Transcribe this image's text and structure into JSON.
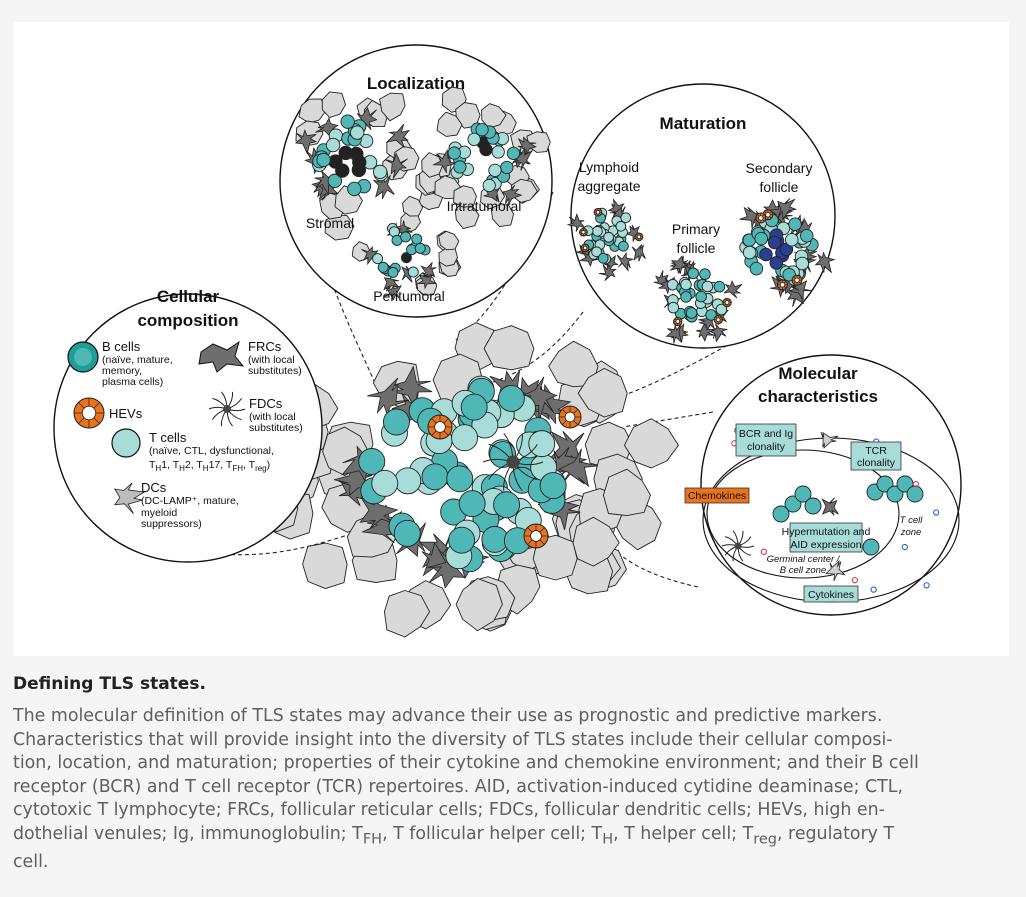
{
  "figure": {
    "localization": {
      "title": "Localization",
      "labels": {
        "stromal": "Stromal",
        "intratumoral": "Intratumoral",
        "peritumoral": "Peritumoral"
      }
    },
    "maturation": {
      "title": "Maturation",
      "labels": {
        "lymphoid_1": "Lymphoid",
        "lymphoid_2": "aggregate",
        "primary_1": "Primary",
        "primary_2": "follicle",
        "secondary_1": "Secondary",
        "secondary_2": "follicle"
      }
    },
    "cellular": {
      "title_1": "Cellular",
      "title_2": "composition",
      "bcells": {
        "name": "B cells",
        "d1": "(naïve, mature,",
        "d2": "memory,",
        "d3": "plasma cells)"
      },
      "frcs": {
        "name": "FRCs",
        "d1": "(with local",
        "d2": "substitutes)"
      },
      "hevs": {
        "name": "HEVs"
      },
      "fdcs": {
        "name": "FDCs",
        "d1": "(with local",
        "d2": "substitutes)"
      },
      "tcells": {
        "name": "T cells",
        "d1": "(naïve, CTL, dysfunctional,",
        "t": "T",
        "h": "H",
        "h2": "H",
        "h17": "H",
        "fh": "FH",
        "reg": "reg",
        "s1": "1, T",
        "s2": "2, T",
        "s3": "17, T",
        "s4": ", T",
        "s5": ")"
      },
      "dcs": {
        "name": "DCs",
        "d1": "(DC-LAMP⁺, mature,",
        "d2": "myeloid",
        "d3": "suppressors)"
      }
    },
    "molecular": {
      "title_1": "Molecular",
      "title_2": "characteristics",
      "bcr_1": "BCR and Ig",
      "bcr_2": "clonality",
      "tcr_1": "TCR",
      "tcr_2": "clonality",
      "chemokines": "Chemokines",
      "hyper_1": "Hypermutation and",
      "hyper_2": "AID expression",
      "germinal_1": "Germinal center /",
      "germinal_2": "B cell zone",
      "tzone_1": "T cell",
      "tzone_2": "zone",
      "cytokines": "Cytokines"
    },
    "colors": {
      "teal": "#4fb8b6",
      "teal_light": "#a7dcd9",
      "grey_cell": "#d9d9d9",
      "dark_stroma": "#6e6e6e",
      "orange": "#e8731c",
      "navy": "#2a3f8f"
    }
  },
  "caption": {
    "title": "Defining TLS states.",
    "lines": [
      "The molecular definition of TLS states may advance their use as prognostic and predictive markers.",
      "Characteristics that will provide insight into the diversity of TLS states include their cellular composi-",
      "tion, location, and maturation; properties of their cytokine and chemokine environment; and their B cell",
      "receptor (BCR) and T cell receptor (TCR) repertoires. AID, activation-induced cytidine deaminase; CTL,",
      "cytotoxic T lymphocyte; FRCs, follicular reticular cells; FDCs, follicular dendritic cells; HEVs, high en-"
    ],
    "line6_pre": "dothelial venules; Ig, immunoglobulin; T",
    "line6_fh": "FH",
    "line6_mid1": ", T follicular helper cell; T",
    "line6_h": "H",
    "line6_mid2": ", T helper cell; T",
    "line6_reg": "reg",
    "line6_post": ", regulatory T",
    "line7": "cell."
  }
}
